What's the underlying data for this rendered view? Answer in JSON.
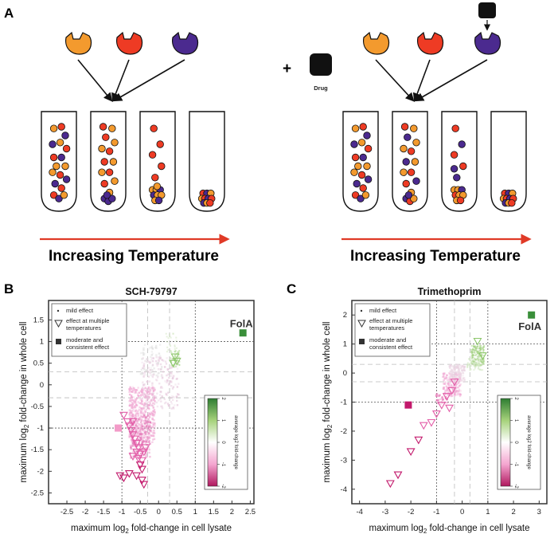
{
  "panel_a": {
    "letter": "A",
    "drug_label": "Drug",
    "plus": "+",
    "temperature_label": "Increasing Temperature",
    "colors": {
      "orange": "#f39a2e",
      "red": "#ee3b24",
      "purple": "#4b2a8f",
      "arrow": "#e03a27"
    }
  },
  "panel_b": {
    "letter": "B",
    "title": "SCH-79797",
    "xlabel_pre": "maximum log",
    "xlabel_sub": "2",
    "xlabel_post": " fold-change in cell lysate",
    "ylabel_pre": "maximum log",
    "ylabel_sub": "2",
    "ylabel_post": " fold-change in whole cell",
    "highlight_label": "FolA",
    "legend": {
      "mild": "mild effect",
      "multi_1": "effect at multiple",
      "multi_2": "temperatures",
      "mod_1": "moderate and",
      "mod_2": "consistent effect"
    },
    "colorbar_label": "average log2 fold-change",
    "colorbar_ticks": [
      "2",
      "1",
      "0",
      "-1",
      "-2"
    ]
  },
  "panel_c": {
    "letter": "C",
    "title": "Trimethoprim",
    "xlabel_pre": "maximum log",
    "xlabel_sub": "2",
    "xlabel_post": " fold-change in cell lysate",
    "ylabel_pre": "maximum log",
    "ylabel_sub": "2",
    "ylabel_post": " fold-change in whole cell",
    "highlight_label": "FolA",
    "legend": {
      "mild": "mild effect",
      "multi_1": "effect at multiple",
      "multi_2": "temperatures",
      "mod_1": "moderate and",
      "mod_2": "consistent effect"
    },
    "colorbar_label": "average log2 fold-change",
    "colorbar_ticks": [
      "2",
      "1",
      "0",
      "-1",
      "-2"
    ]
  },
  "chart_data": [
    {
      "type": "scatter",
      "title": "SCH-79797",
      "xlabel": "maximum log2 fold-change in cell lysate",
      "ylabel": "maximum log2 fold-change in whole cell",
      "xlim": [
        -3,
        2.6
      ],
      "ylim": [
        -2.75,
        1.95
      ],
      "xticks": [
        -2.5,
        -2,
        -1.5,
        -1,
        -0.5,
        0,
        0.5,
        1,
        1.5,
        2,
        2.5
      ],
      "yticks": [
        1.5,
        1,
        0.5,
        0,
        -0.5,
        -1,
        -1.5,
        -2,
        -2.5
      ],
      "threshold_lines": {
        "x": [
          -1,
          1
        ],
        "y": [
          -1,
          1
        ]
      },
      "highlight": {
        "label": "FolA",
        "x": 2.3,
        "y": 1.2,
        "color": "#3a8f3a"
      },
      "moderate_points": [
        {
          "x": -1.1,
          "y": -1.0,
          "color": "#f39bc8"
        }
      ],
      "multi_temperature_points": [
        {
          "x": -0.95,
          "y": -0.7
        },
        {
          "x": -0.85,
          "y": -0.85
        },
        {
          "x": -0.8,
          "y": -0.95
        },
        {
          "x": -0.75,
          "y": -1.05
        },
        {
          "x": -0.7,
          "y": -1.15
        },
        {
          "x": -0.65,
          "y": -1.25
        },
        {
          "x": -0.6,
          "y": -1.35
        },
        {
          "x": -0.55,
          "y": -1.45
        },
        {
          "x": -0.6,
          "y": -1.55
        },
        {
          "x": -0.5,
          "y": -1.6
        },
        {
          "x": -0.55,
          "y": -1.7
        },
        {
          "x": -0.45,
          "y": -1.75
        },
        {
          "x": -0.5,
          "y": -1.85
        },
        {
          "x": -0.45,
          "y": -1.95
        },
        {
          "x": -0.7,
          "y": -1.65
        },
        {
          "x": -0.4,
          "y": -1.55
        },
        {
          "x": -0.35,
          "y": -1.45
        },
        {
          "x": -1.05,
          "y": -2.1
        },
        {
          "x": -0.95,
          "y": -2.15
        },
        {
          "x": -0.8,
          "y": -2.05
        },
        {
          "x": -0.6,
          "y": -2.1
        },
        {
          "x": -0.45,
          "y": -2.2
        },
        {
          "x": -0.4,
          "y": -2.3
        },
        {
          "x": -0.7,
          "y": -0.85
        },
        {
          "x": 0.45,
          "y": 0.65
        },
        {
          "x": 0.5,
          "y": 0.55
        },
        {
          "x": 0.4,
          "y": 0.5
        }
      ]
    },
    {
      "type": "scatter",
      "title": "Trimethoprim",
      "xlabel": "maximum log2 fold-change in cell lysate",
      "ylabel": "maximum log2 fold-change in whole cell",
      "xlim": [
        -4.3,
        3.3
      ],
      "ylim": [
        -4.5,
        2.5
      ],
      "xticks": [
        -4,
        -3,
        -2,
        -1,
        0,
        1,
        2,
        3
      ],
      "yticks": [
        2,
        1,
        0,
        -1,
        -2,
        -3,
        -4
      ],
      "threshold_lines": {
        "x": [
          -1,
          1
        ],
        "y": [
          -1,
          1
        ]
      },
      "highlight": {
        "label": "FolA",
        "x": 2.7,
        "y": 2.0,
        "color": "#3a8f3a"
      },
      "moderate_points": [
        {
          "x": -2.1,
          "y": -1.1,
          "color": "#c2186b"
        }
      ],
      "multi_temperature_points": [
        {
          "x": -2.8,
          "y": -3.8
        },
        {
          "x": -2.5,
          "y": -3.5
        },
        {
          "x": -2.0,
          "y": -2.7
        },
        {
          "x": -1.7,
          "y": -2.3
        },
        {
          "x": -1.5,
          "y": -1.8
        },
        {
          "x": -1.2,
          "y": -1.7
        },
        {
          "x": -1.0,
          "y": -1.4
        },
        {
          "x": -0.8,
          "y": -1.1
        },
        {
          "x": -0.6,
          "y": -0.8
        },
        {
          "x": -0.4,
          "y": -0.6
        },
        {
          "x": -0.3,
          "y": -0.3
        },
        {
          "x": -0.5,
          "y": -1.2
        },
        {
          "x": 0.6,
          "y": 1.1
        },
        {
          "x": 0.8,
          "y": 0.6
        }
      ]
    }
  ]
}
